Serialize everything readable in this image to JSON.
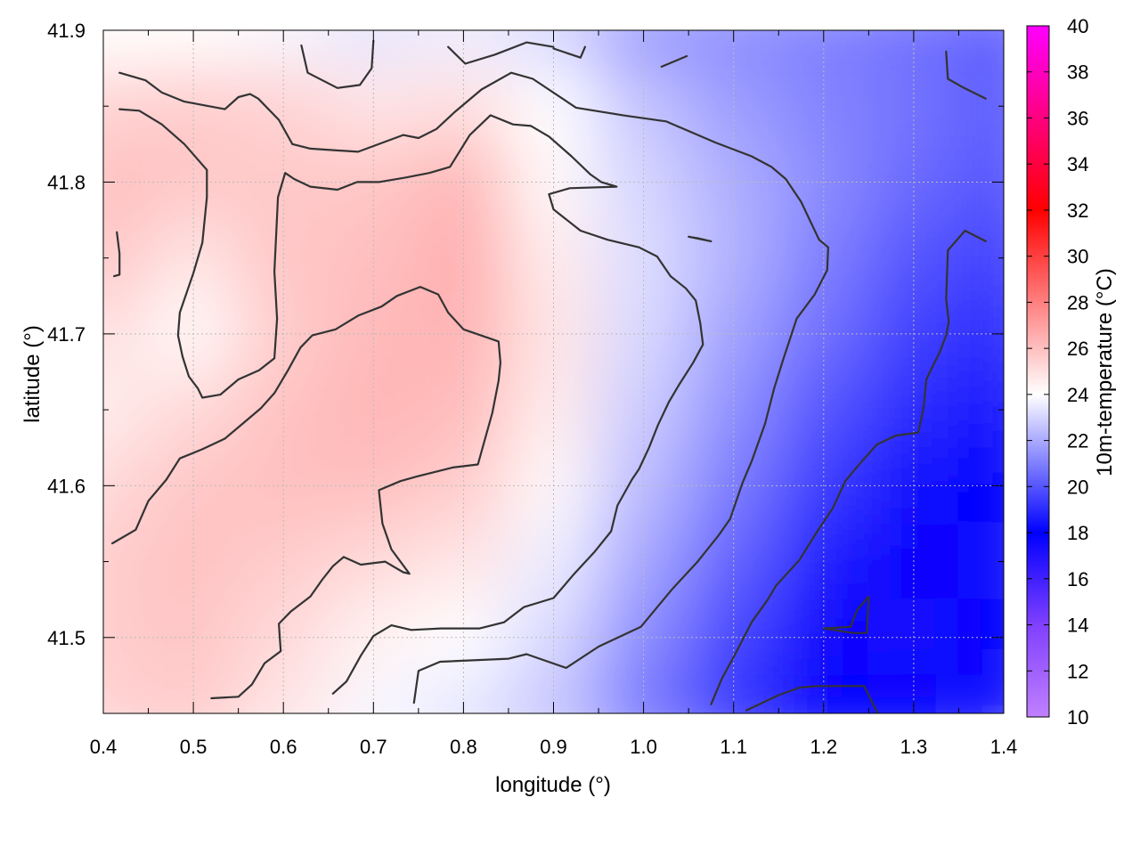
{
  "chart_data": {
    "type": "heatmap",
    "title": "",
    "xlabel": "longitude (°)",
    "ylabel": "latitude (°)",
    "xlim": [
      0.4,
      1.4
    ],
    "ylim": [
      41.45,
      41.9
    ],
    "x_ticks": [
      "0.4",
      "0.5",
      "0.6",
      "0.7",
      "0.8",
      "0.9",
      "1.0",
      "1.1",
      "1.2",
      "1.3",
      "1.4"
    ],
    "y_ticks": [
      "41.5",
      "41.6",
      "41.7",
      "41.8",
      "41.9"
    ],
    "grid": true,
    "colorbar": {
      "label": "10m-temperature (°C)",
      "range": [
        10,
        40
      ],
      "ticks": [
        "10",
        "12",
        "14",
        "16",
        "18",
        "20",
        "22",
        "24",
        "26",
        "28",
        "30",
        "32",
        "34",
        "36",
        "38",
        "40"
      ],
      "stops": [
        {
          "value": 10,
          "color": "#c080ff"
        },
        {
          "value": 14,
          "color": "#8040ff"
        },
        {
          "value": 18,
          "color": "#0000ff"
        },
        {
          "value": 24,
          "color": "#ffffff"
        },
        {
          "value": 32,
          "color": "#ff0000"
        },
        {
          "value": 40,
          "color": "#ff00ff"
        }
      ]
    },
    "temperature_field": {
      "x": [
        0.4,
        0.5,
        0.6,
        0.7,
        0.8,
        0.9,
        1.0,
        1.1,
        1.2,
        1.3,
        1.4
      ],
      "y": [
        41.9,
        41.85,
        41.8,
        41.75,
        41.7,
        41.65,
        41.6,
        41.55,
        41.5,
        41.45
      ],
      "values": [
        [
          24.0,
          24.0,
          23.8,
          23.4,
          23.6,
          23.0,
          21.6,
          21.3,
          21.0,
          20.6,
          20.2
        ],
        [
          25.4,
          25.6,
          25.4,
          24.8,
          25.0,
          24.0,
          22.6,
          21.7,
          21.1,
          20.7,
          20.2
        ],
        [
          26.0,
          25.8,
          25.7,
          25.8,
          26.3,
          24.2,
          23.0,
          22.1,
          21.3,
          20.5,
          20.0
        ],
        [
          25.8,
          24.8,
          25.8,
          26.0,
          26.5,
          24.6,
          23.2,
          22.2,
          21.0,
          20.0,
          19.5
        ],
        [
          25.0,
          24.2,
          25.6,
          26.2,
          26.4,
          24.8,
          23.1,
          21.8,
          20.6,
          19.5,
          19.0
        ],
        [
          24.6,
          25.2,
          25.9,
          26.3,
          26.1,
          24.6,
          22.8,
          21.4,
          20.0,
          19.0,
          18.5
        ],
        [
          25.2,
          25.8,
          26.0,
          26.0,
          25.6,
          24.2,
          22.4,
          20.9,
          19.4,
          18.2,
          17.8
        ],
        [
          25.6,
          25.9,
          25.6,
          25.2,
          24.8,
          23.6,
          21.9,
          20.3,
          18.6,
          17.6,
          17.5
        ],
        [
          25.6,
          25.8,
          25.2,
          24.4,
          24.0,
          23.1,
          21.3,
          19.6,
          17.6,
          17.4,
          17.8
        ],
        [
          25.4,
          25.6,
          24.8,
          23.8,
          23.4,
          22.6,
          20.8,
          19.2,
          18.0,
          18.0,
          18.5
        ]
      ]
    },
    "contours": [
      [
        [
          0.418,
          41.872
        ],
        [
          0.447,
          41.867
        ],
        [
          0.465,
          41.859
        ],
        [
          0.49,
          41.853
        ],
        [
          0.535,
          41.848
        ],
        [
          0.55,
          41.856
        ],
        [
          0.563,
          41.858
        ],
        [
          0.572,
          41.855
        ],
        [
          0.595,
          41.841
        ],
        [
          0.61,
          41.825
        ],
        [
          0.63,
          41.822
        ],
        [
          0.683,
          41.82
        ],
        [
          0.733,
          41.831
        ],
        [
          0.75,
          41.829
        ],
        [
          0.77,
          41.835
        ],
        [
          0.79,
          41.846
        ],
        [
          0.82,
          41.861
        ],
        [
          0.853,
          41.872
        ],
        [
          0.877,
          41.868
        ],
        [
          0.925,
          41.849
        ],
        [
          0.977,
          41.844
        ],
        [
          1.025,
          41.84
        ],
        [
          1.08,
          41.826
        ],
        [
          1.12,
          41.817
        ],
        [
          1.142,
          41.81
        ],
        [
          1.158,
          41.802
        ],
        [
          1.175,
          41.787
        ],
        [
          1.195,
          41.762
        ],
        [
          1.205,
          41.757
        ],
        [
          1.204,
          41.742
        ],
        [
          1.19,
          41.726
        ],
        [
          1.17,
          41.71
        ],
        [
          1.155,
          41.683
        ],
        [
          1.145,
          41.664
        ],
        [
          1.135,
          41.641
        ],
        [
          1.12,
          41.616
        ],
        [
          1.11,
          41.602
        ],
        [
          1.096,
          41.578
        ],
        [
          1.083,
          41.567
        ],
        [
          1.06,
          41.55
        ],
        [
          1.032,
          41.532
        ],
        [
          1.011,
          41.517
        ],
        [
          0.997,
          41.507
        ],
        [
          0.95,
          41.494
        ],
        [
          0.914,
          41.48
        ],
        [
          0.87,
          41.489
        ],
        [
          0.85,
          41.486
        ],
        [
          0.774,
          41.484
        ],
        [
          0.75,
          41.478
        ],
        [
          0.745,
          41.457
        ]
      ],
      [
        [
          0.418,
          41.848
        ],
        [
          0.44,
          41.847
        ],
        [
          0.465,
          41.838
        ],
        [
          0.49,
          41.825
        ],
        [
          0.515,
          41.808
        ],
        [
          0.515,
          41.79
        ],
        [
          0.51,
          41.76
        ],
        [
          0.5,
          41.74
        ],
        [
          0.485,
          41.714
        ],
        [
          0.483,
          41.699
        ],
        [
          0.488,
          41.685
        ],
        [
          0.495,
          41.672
        ],
        [
          0.505,
          41.664
        ],
        [
          0.51,
          41.658
        ],
        [
          0.53,
          41.66
        ],
        [
          0.55,
          41.67
        ],
        [
          0.573,
          41.676
        ],
        [
          0.59,
          41.684
        ],
        [
          0.593,
          41.71
        ],
        [
          0.59,
          41.741
        ],
        [
          0.594,
          41.79
        ],
        [
          0.602,
          41.806
        ],
        [
          0.612,
          41.802
        ],
        [
          0.63,
          41.797
        ],
        [
          0.66,
          41.795
        ],
        [
          0.682,
          41.8
        ],
        [
          0.706,
          41.8
        ],
        [
          0.736,
          41.803
        ],
        [
          0.762,
          41.806
        ],
        [
          0.785,
          41.81
        ],
        [
          0.807,
          41.831
        ],
        [
          0.83,
          41.844
        ],
        [
          0.855,
          41.838
        ],
        [
          0.875,
          41.837
        ],
        [
          0.895,
          41.83
        ],
        [
          0.92,
          41.817
        ],
        [
          0.941,
          41.805
        ],
        [
          0.953,
          41.8
        ],
        [
          0.97,
          41.797
        ],
        [
          0.918,
          41.796
        ],
        [
          0.895,
          41.792
        ],
        [
          0.9,
          41.782
        ],
        [
          0.93,
          41.768
        ],
        [
          0.96,
          41.762
        ],
        [
          0.995,
          41.757
        ],
        [
          1.015,
          41.751
        ],
        [
          1.03,
          41.738
        ],
        [
          1.047,
          41.73
        ],
        [
          1.058,
          41.722
        ],
        [
          1.063,
          41.707
        ],
        [
          1.066,
          41.693
        ],
        [
          1.055,
          41.681
        ],
        [
          1.04,
          41.667
        ],
        [
          1.028,
          41.655
        ],
        [
          1.016,
          41.64
        ],
        [
          1.006,
          41.625
        ],
        [
          0.995,
          41.611
        ],
        [
          0.987,
          41.604
        ],
        [
          0.971,
          41.587
        ],
        [
          0.964,
          41.57
        ],
        [
          0.945,
          41.556
        ],
        [
          0.923,
          41.542
        ],
        [
          0.9,
          41.526
        ],
        [
          0.867,
          41.52
        ],
        [
          0.845,
          41.51
        ],
        [
          0.818,
          41.506
        ],
        [
          0.775,
          41.506
        ],
        [
          0.742,
          41.505
        ],
        [
          0.72,
          41.508
        ],
        [
          0.7,
          41.501
        ],
        [
          0.686,
          41.488
        ],
        [
          0.67,
          41.471
        ],
        [
          0.655,
          41.463
        ]
      ],
      [
        [
          0.41,
          41.562
        ],
        [
          0.436,
          41.571
        ],
        [
          0.45,
          41.59
        ],
        [
          0.47,
          41.604
        ],
        [
          0.485,
          41.618
        ],
        [
          0.51,
          41.624
        ],
        [
          0.535,
          41.631
        ],
        [
          0.555,
          41.641
        ],
        [
          0.575,
          41.651
        ],
        [
          0.59,
          41.661
        ],
        [
          0.605,
          41.676
        ],
        [
          0.619,
          41.691
        ],
        [
          0.632,
          41.699
        ],
        [
          0.658,
          41.703
        ],
        [
          0.683,
          41.712
        ],
        [
          0.709,
          41.718
        ],
        [
          0.726,
          41.725
        ],
        [
          0.752,
          41.731
        ],
        [
          0.772,
          41.726
        ],
        [
          0.783,
          41.714
        ],
        [
          0.8,
          41.703
        ],
        [
          0.839,
          41.695
        ],
        [
          0.841,
          41.681
        ],
        [
          0.839,
          41.669
        ],
        [
          0.832,
          41.648
        ],
        [
          0.816,
          41.614
        ],
        [
          0.788,
          41.612
        ],
        [
          0.748,
          41.606
        ],
        [
          0.73,
          41.603
        ],
        [
          0.706,
          41.597
        ],
        [
          0.71,
          41.575
        ],
        [
          0.72,
          41.558
        ],
        [
          0.74,
          41.542
        ],
        [
          0.733,
          41.543
        ],
        [
          0.713,
          41.55
        ],
        [
          0.686,
          41.548
        ],
        [
          0.667,
          41.553
        ],
        [
          0.655,
          41.547
        ],
        [
          0.643,
          41.538
        ],
        [
          0.63,
          41.527
        ],
        [
          0.608,
          41.517
        ],
        [
          0.595,
          41.509
        ],
        [
          0.597,
          41.491
        ],
        [
          0.579,
          41.483
        ],
        [
          0.565,
          41.469
        ],
        [
          0.55,
          41.461
        ],
        [
          0.52,
          41.46
        ]
      ],
      [
        [
          0.412,
          41.738
        ],
        [
          0.418,
          41.739
        ],
        [
          0.418,
          41.753
        ],
        [
          0.415,
          41.767
        ]
      ],
      [
        [
          0.62,
          41.89
        ],
        [
          0.627,
          41.872
        ],
        [
          0.66,
          41.862
        ],
        [
          0.685,
          41.864
        ],
        [
          0.698,
          41.875
        ],
        [
          0.7,
          41.893
        ]
      ],
      [
        [
          0.783,
          41.889
        ],
        [
          0.802,
          41.878
        ],
        [
          0.835,
          41.884
        ],
        [
          0.87,
          41.892
        ],
        [
          0.9,
          41.889
        ]
      ],
      [
        [
          0.9,
          41.888
        ],
        [
          0.93,
          41.882
        ],
        [
          0.935,
          41.889
        ]
      ],
      [
        [
          1.02,
          41.876
        ],
        [
          1.048,
          41.883
        ]
      ],
      [
        [
          1.336,
          41.886
        ],
        [
          1.338,
          41.868
        ],
        [
          1.356,
          41.862
        ],
        [
          1.38,
          41.855
        ]
      ],
      [
        [
          1.06,
          41.763
        ],
        [
          1.075,
          41.761
        ],
        [
          1.05,
          41.764
        ],
        [
          1.06,
          41.763
        ]
      ],
      [
        [
          1.38,
          41.761
        ],
        [
          1.357,
          41.768
        ],
        [
          1.338,
          41.755
        ],
        [
          1.336,
          41.723
        ],
        [
          1.339,
          41.708
        ],
        [
          1.336,
          41.699
        ],
        [
          1.329,
          41.688
        ],
        [
          1.314,
          41.67
        ],
        [
          1.311,
          41.651
        ],
        [
          1.305,
          41.635
        ],
        [
          1.28,
          41.633
        ],
        [
          1.259,
          41.627
        ],
        [
          1.238,
          41.613
        ],
        [
          1.224,
          41.603
        ],
        [
          1.21,
          41.585
        ],
        [
          1.193,
          41.57
        ],
        [
          1.173,
          41.551
        ],
        [
          1.147,
          41.534
        ],
        [
          1.138,
          41.525
        ],
        [
          1.12,
          41.51
        ],
        [
          1.1,
          41.487
        ],
        [
          1.087,
          41.473
        ],
        [
          1.075,
          41.456
        ]
      ],
      [
        [
          1.114,
          41.452
        ],
        [
          1.15,
          41.462
        ],
        [
          1.173,
          41.467
        ],
        [
          1.193,
          41.468
        ],
        [
          1.245,
          41.468
        ],
        [
          1.26,
          41.45
        ]
      ],
      [
        [
          1.2,
          41.506
        ],
        [
          1.232,
          41.503
        ],
        [
          1.248,
          41.503
        ],
        [
          1.25,
          41.527
        ],
        [
          1.237,
          41.518
        ],
        [
          1.23,
          41.507
        ],
        [
          1.2,
          41.506
        ]
      ]
    ]
  }
}
